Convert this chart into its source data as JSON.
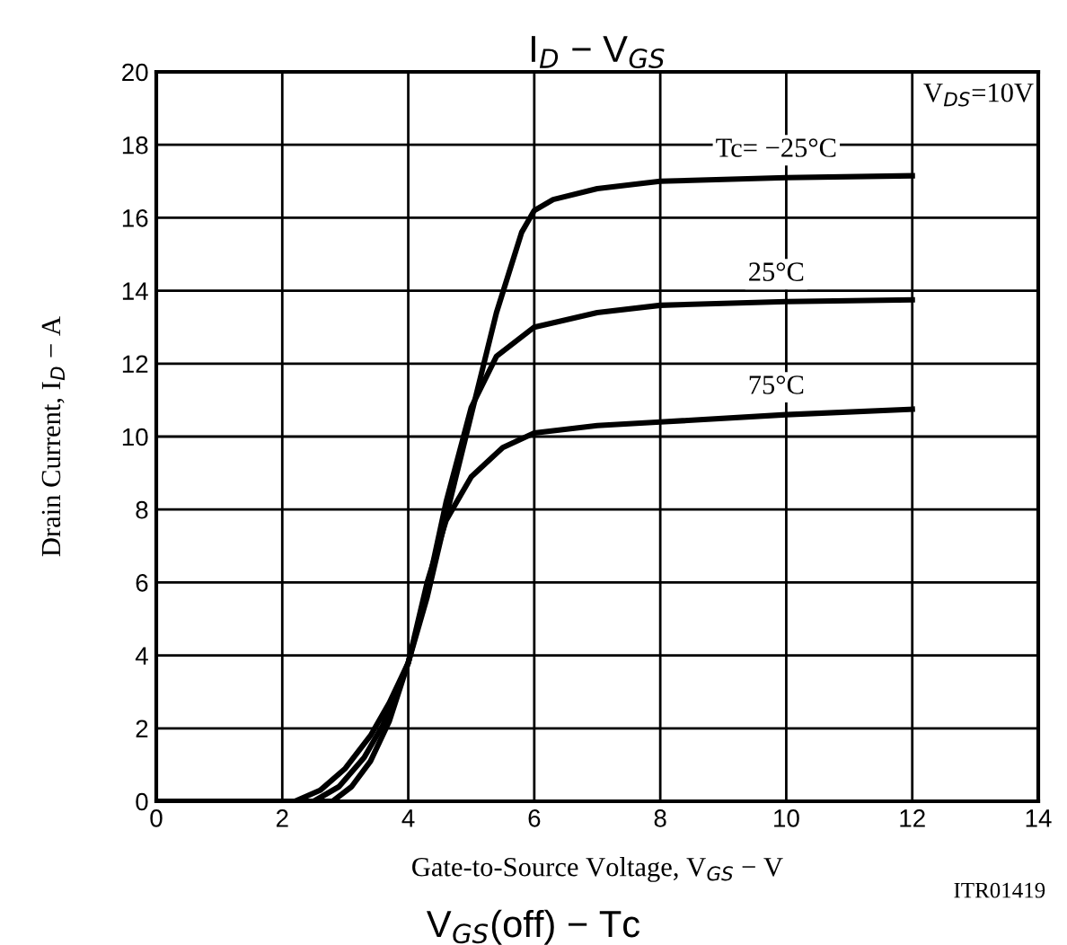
{
  "chart_data": {
    "type": "line",
    "title": "I$_{D}$ − V$_{GS}$",
    "xlabel": "Gate-to-Source Voltage, V$_{GS}$ − V",
    "ylabel": "Drain Current, I$_{D}$ − A",
    "annotations": [
      "V$_{DS}$=10V",
      "ITR01419",
      "V$_{GS}$(off) − Tc"
    ],
    "xlim": [
      0,
      14
    ],
    "xticks": [
      0,
      2,
      4,
      6,
      8,
      10,
      12,
      14
    ],
    "ylim": [
      0,
      20
    ],
    "yticks": [
      0,
      2,
      4,
      6,
      8,
      10,
      12,
      14,
      16,
      18,
      20
    ],
    "grid": true,
    "legend": false,
    "marker": "none",
    "line_style": "solid",
    "series": [
      {
        "name": "Tc= −25°C",
        "color": "#000000",
        "x": [
          0,
          2.2,
          2.6,
          3.0,
          3.4,
          3.7,
          4.0,
          4.3,
          4.6,
          5.0,
          5.4,
          5.8,
          6.0,
          6.3,
          7,
          8,
          10,
          12
        ],
        "values": [
          0,
          0,
          0.3,
          0.9,
          1.8,
          2.7,
          3.8,
          5.6,
          7.8,
          10.6,
          13.4,
          15.6,
          16.2,
          16.5,
          16.8,
          17.0,
          17.1,
          17.15
        ]
      },
      {
        "name": "25°C",
        "color": "#000000",
        "x": [
          0,
          2.5,
          2.9,
          3.3,
          3.6,
          4.0,
          4.3,
          4.6,
          5.0,
          5.4,
          6.0,
          7,
          8,
          10,
          12
        ],
        "values": [
          0,
          0,
          0.4,
          1.2,
          2.1,
          3.8,
          5.8,
          8.2,
          10.8,
          12.2,
          13.0,
          13.4,
          13.6,
          13.7,
          13.75
        ]
      },
      {
        "name": "75°C",
        "color": "#000000",
        "x": [
          0,
          2.8,
          3.1,
          3.4,
          3.7,
          4.0,
          4.3,
          4.6,
          5.0,
          5.5,
          6.0,
          7,
          8,
          10,
          12
        ],
        "values": [
          0,
          0,
          0.4,
          1.1,
          2.2,
          3.8,
          6.0,
          7.7,
          8.9,
          9.7,
          10.1,
          10.3,
          10.4,
          10.6,
          10.75
        ]
      }
    ]
  }
}
